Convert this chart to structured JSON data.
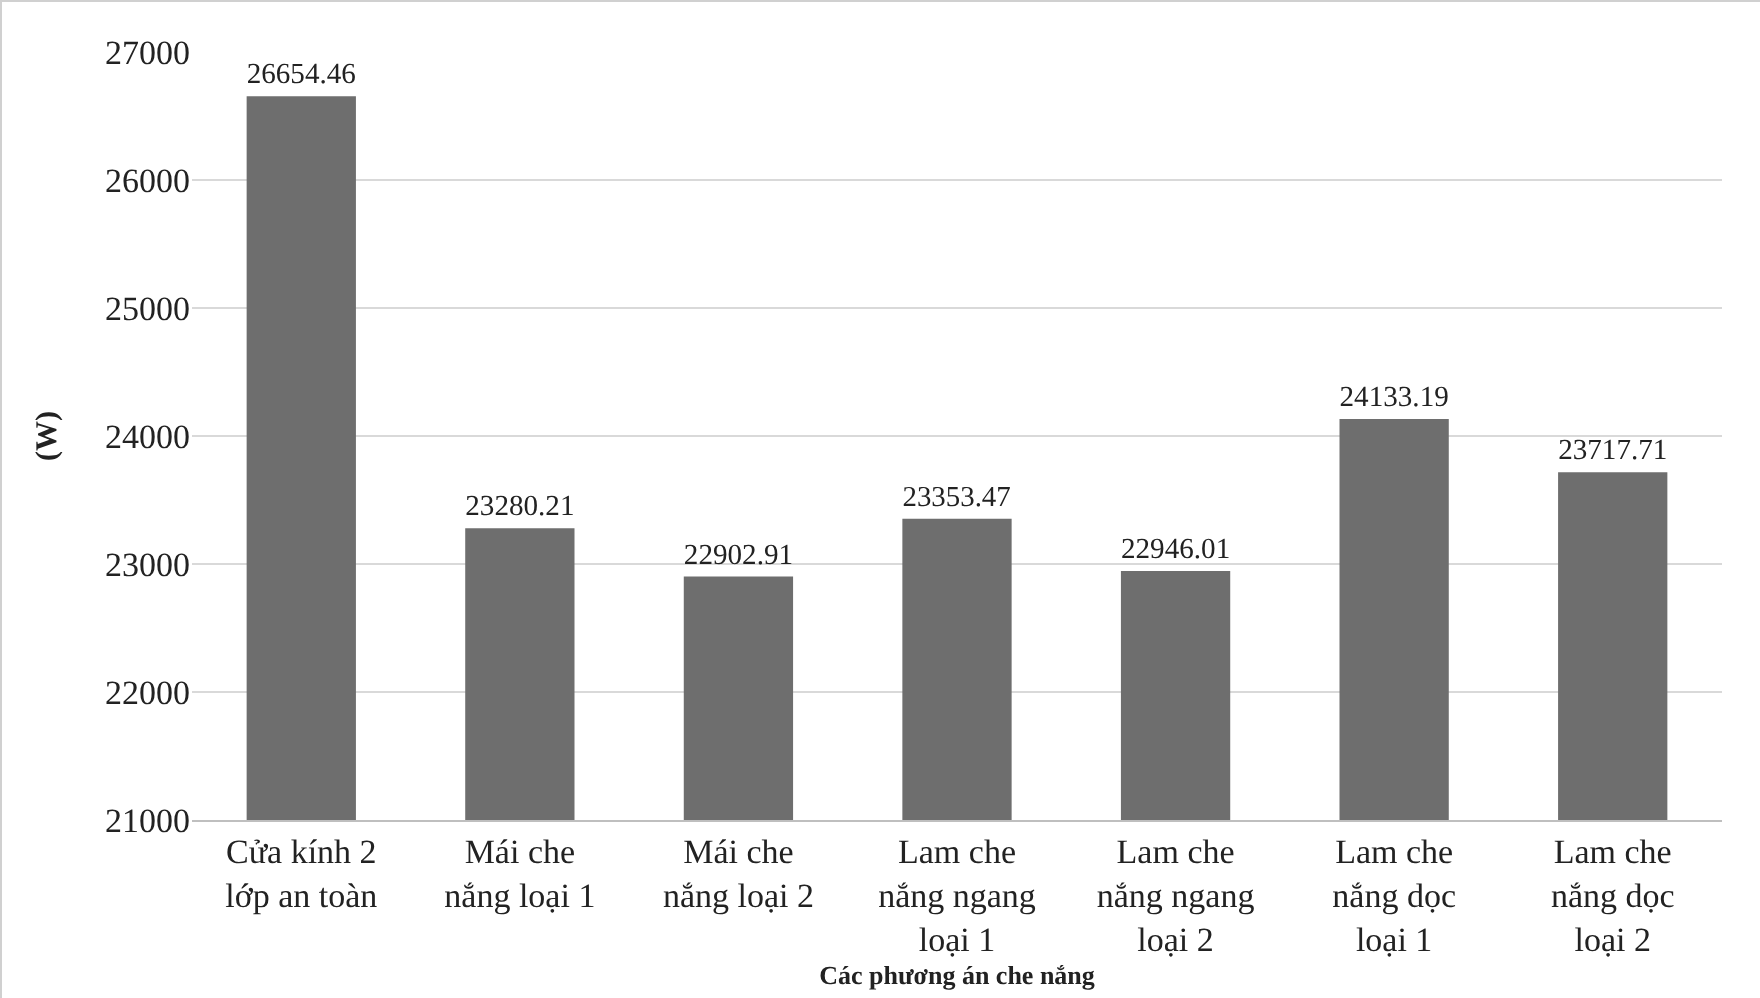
{
  "chart_data": {
    "type": "bar",
    "xlabel": "Các phương án che nắng",
    "ylabel": "(W)",
    "categories": [
      "Cửa kính 2 lớp an toàn",
      "Mái che nắng loại 1",
      "Mái che nắng loại 2",
      "Lam che nắng ngang loại 1",
      "Lam che nắng ngang loại 2",
      "Lam che nắng dọc loại 1",
      "Lam che nắng dọc loại 2"
    ],
    "values": [
      26654.46,
      23280.21,
      22902.91,
      23353.47,
      22946.01,
      24133.19,
      23717.71
    ],
    "color": "#6e6e6e",
    "ylim": [
      21000,
      27000
    ],
    "yticks": [
      21000,
      22000,
      23000,
      24000,
      25000,
      26000,
      27000
    ],
    "grid": "y",
    "data_labels": true
  }
}
